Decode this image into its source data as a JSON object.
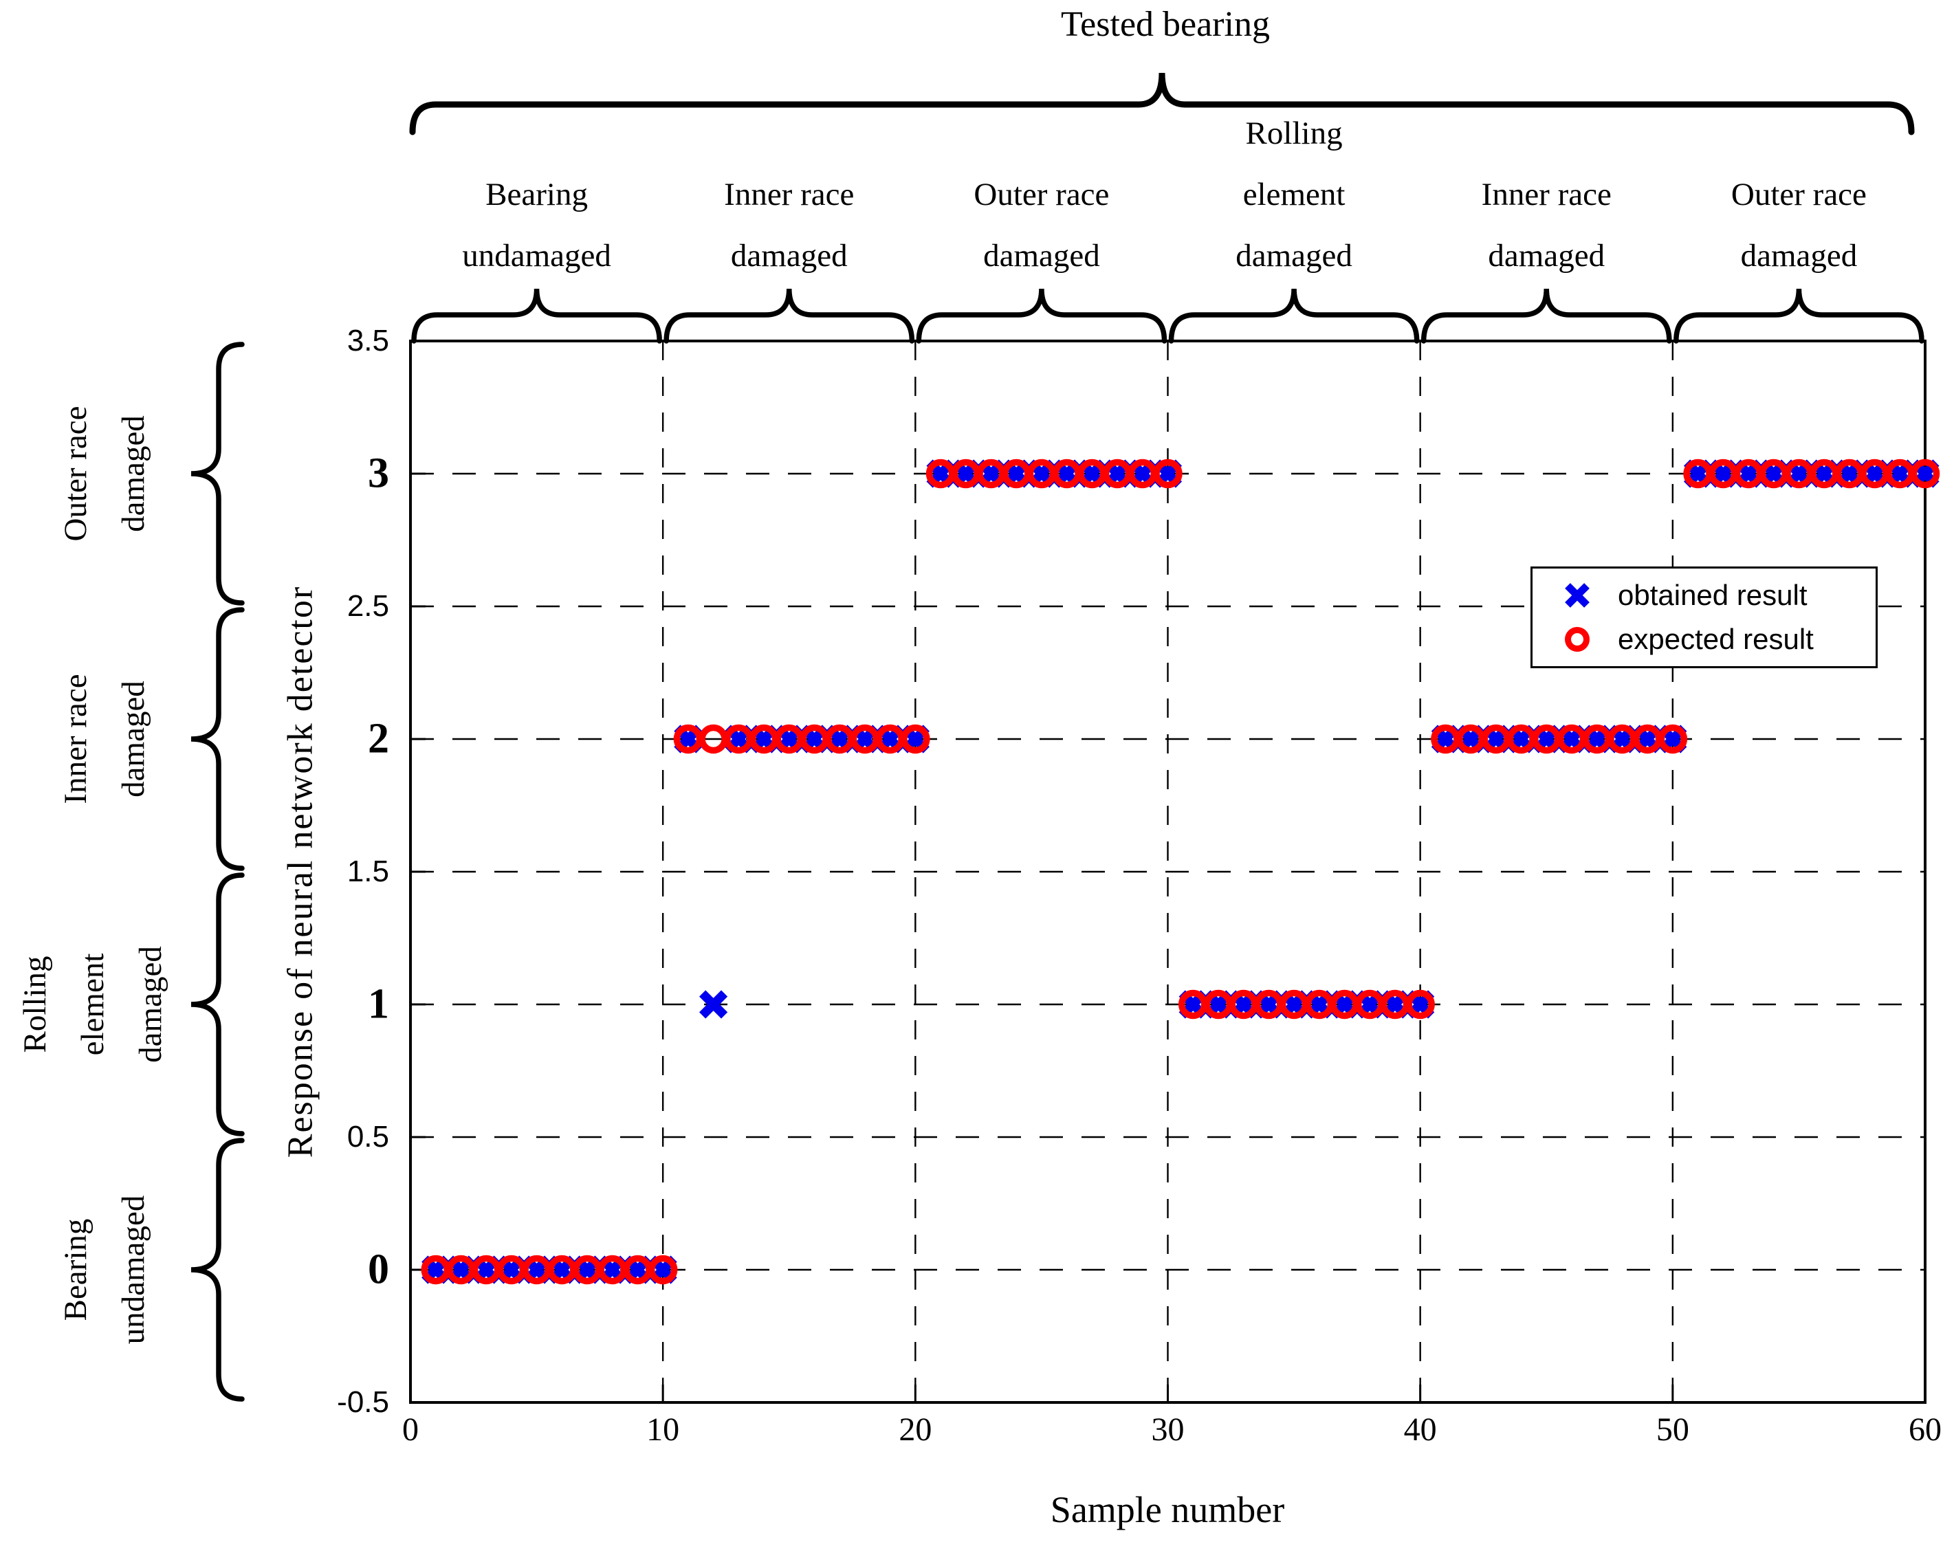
{
  "title": "Tested bearing",
  "top_groups": [
    {
      "label_lines": [
        "Bearing",
        "undamaged"
      ],
      "x_start": 0,
      "x_end": 10
    },
    {
      "label_lines": [
        "Inner race",
        "damaged"
      ],
      "x_start": 10,
      "x_end": 20
    },
    {
      "label_lines": [
        "Outer race",
        "damaged"
      ],
      "x_start": 20,
      "x_end": 30
    },
    {
      "label_lines": [
        "Rolling",
        "element",
        "damaged"
      ],
      "x_start": 30,
      "x_end": 40
    },
    {
      "label_lines": [
        "Inner race",
        "damaged"
      ],
      "x_start": 40,
      "x_end": 50
    },
    {
      "label_lines": [
        "Outer race",
        "damaged"
      ],
      "x_start": 50,
      "x_end": 60
    }
  ],
  "left_categories": [
    {
      "label_lines": [
        "Outer race",
        "damaged"
      ],
      "y_center": 3
    },
    {
      "label_lines": [
        "Inner race",
        "damaged"
      ],
      "y_center": 2
    },
    {
      "label_lines": [
        "Rolling",
        "element",
        "damaged"
      ],
      "y_center": 1
    },
    {
      "label_lines": [
        "Bearing",
        "undamaged"
      ],
      "y_center": 0
    }
  ],
  "legend": {
    "items": [
      {
        "marker": "x",
        "color": "#0000EE",
        "label": "obtained result"
      },
      {
        "marker": "o",
        "color": "#FF0000",
        "label": "expected result"
      }
    ]
  },
  "colors": {
    "obtained": "#0000EE",
    "expected": "#FF0000",
    "axis": "#000000",
    "background": "#FFFFFF"
  },
  "chart_data": {
    "type": "scatter",
    "title": "Tested bearing",
    "xlabel": "Sample number",
    "ylabel": "Response of neural network detector",
    "xlim": [
      0,
      60
    ],
    "ylim": [
      -0.5,
      3.5
    ],
    "x_ticks": [
      0,
      10,
      20,
      30,
      40,
      50,
      60
    ],
    "y_ticks": [
      -0.5,
      0,
      0.5,
      1,
      1.5,
      2,
      2.5,
      3,
      3.5
    ],
    "grid": "dashed",
    "legend_position": "inside upper right",
    "series": [
      {
        "name": "obtained result",
        "marker": "x",
        "color": "#0000EE",
        "x": [
          1,
          2,
          3,
          4,
          5,
          6,
          7,
          8,
          9,
          10,
          11,
          12,
          13,
          14,
          15,
          16,
          17,
          18,
          19,
          20,
          21,
          22,
          23,
          24,
          25,
          26,
          27,
          28,
          29,
          30,
          31,
          32,
          33,
          34,
          35,
          36,
          37,
          38,
          39,
          40,
          41,
          42,
          43,
          44,
          45,
          46,
          47,
          48,
          49,
          50,
          51,
          52,
          53,
          54,
          55,
          56,
          57,
          58,
          59,
          60
        ],
        "y": [
          0,
          0,
          0,
          0,
          0,
          0,
          0,
          0,
          0,
          0,
          2,
          1,
          2,
          2,
          2,
          2,
          2,
          2,
          2,
          2,
          3,
          3,
          3,
          3,
          3,
          3,
          3,
          3,
          3,
          3,
          1,
          1,
          1,
          1,
          1,
          1,
          1,
          1,
          1,
          1,
          2,
          2,
          2,
          2,
          2,
          2,
          2,
          2,
          2,
          2,
          3,
          3,
          3,
          3,
          3,
          3,
          3,
          3,
          3,
          3
        ]
      },
      {
        "name": "expected result",
        "marker": "o",
        "color": "#FF0000",
        "x": [
          1,
          2,
          3,
          4,
          5,
          6,
          7,
          8,
          9,
          10,
          11,
          12,
          13,
          14,
          15,
          16,
          17,
          18,
          19,
          20,
          21,
          22,
          23,
          24,
          25,
          26,
          27,
          28,
          29,
          30,
          31,
          32,
          33,
          34,
          35,
          36,
          37,
          38,
          39,
          40,
          41,
          42,
          43,
          44,
          45,
          46,
          47,
          48,
          49,
          50,
          51,
          52,
          53,
          54,
          55,
          56,
          57,
          58,
          59,
          60
        ],
        "y": [
          0,
          0,
          0,
          0,
          0,
          0,
          0,
          0,
          0,
          0,
          2,
          2,
          2,
          2,
          2,
          2,
          2,
          2,
          2,
          2,
          3,
          3,
          3,
          3,
          3,
          3,
          3,
          3,
          3,
          3,
          1,
          1,
          1,
          1,
          1,
          1,
          1,
          1,
          1,
          1,
          2,
          2,
          2,
          2,
          2,
          2,
          2,
          2,
          2,
          2,
          3,
          3,
          3,
          3,
          3,
          3,
          3,
          3,
          3,
          3
        ]
      }
    ]
  }
}
